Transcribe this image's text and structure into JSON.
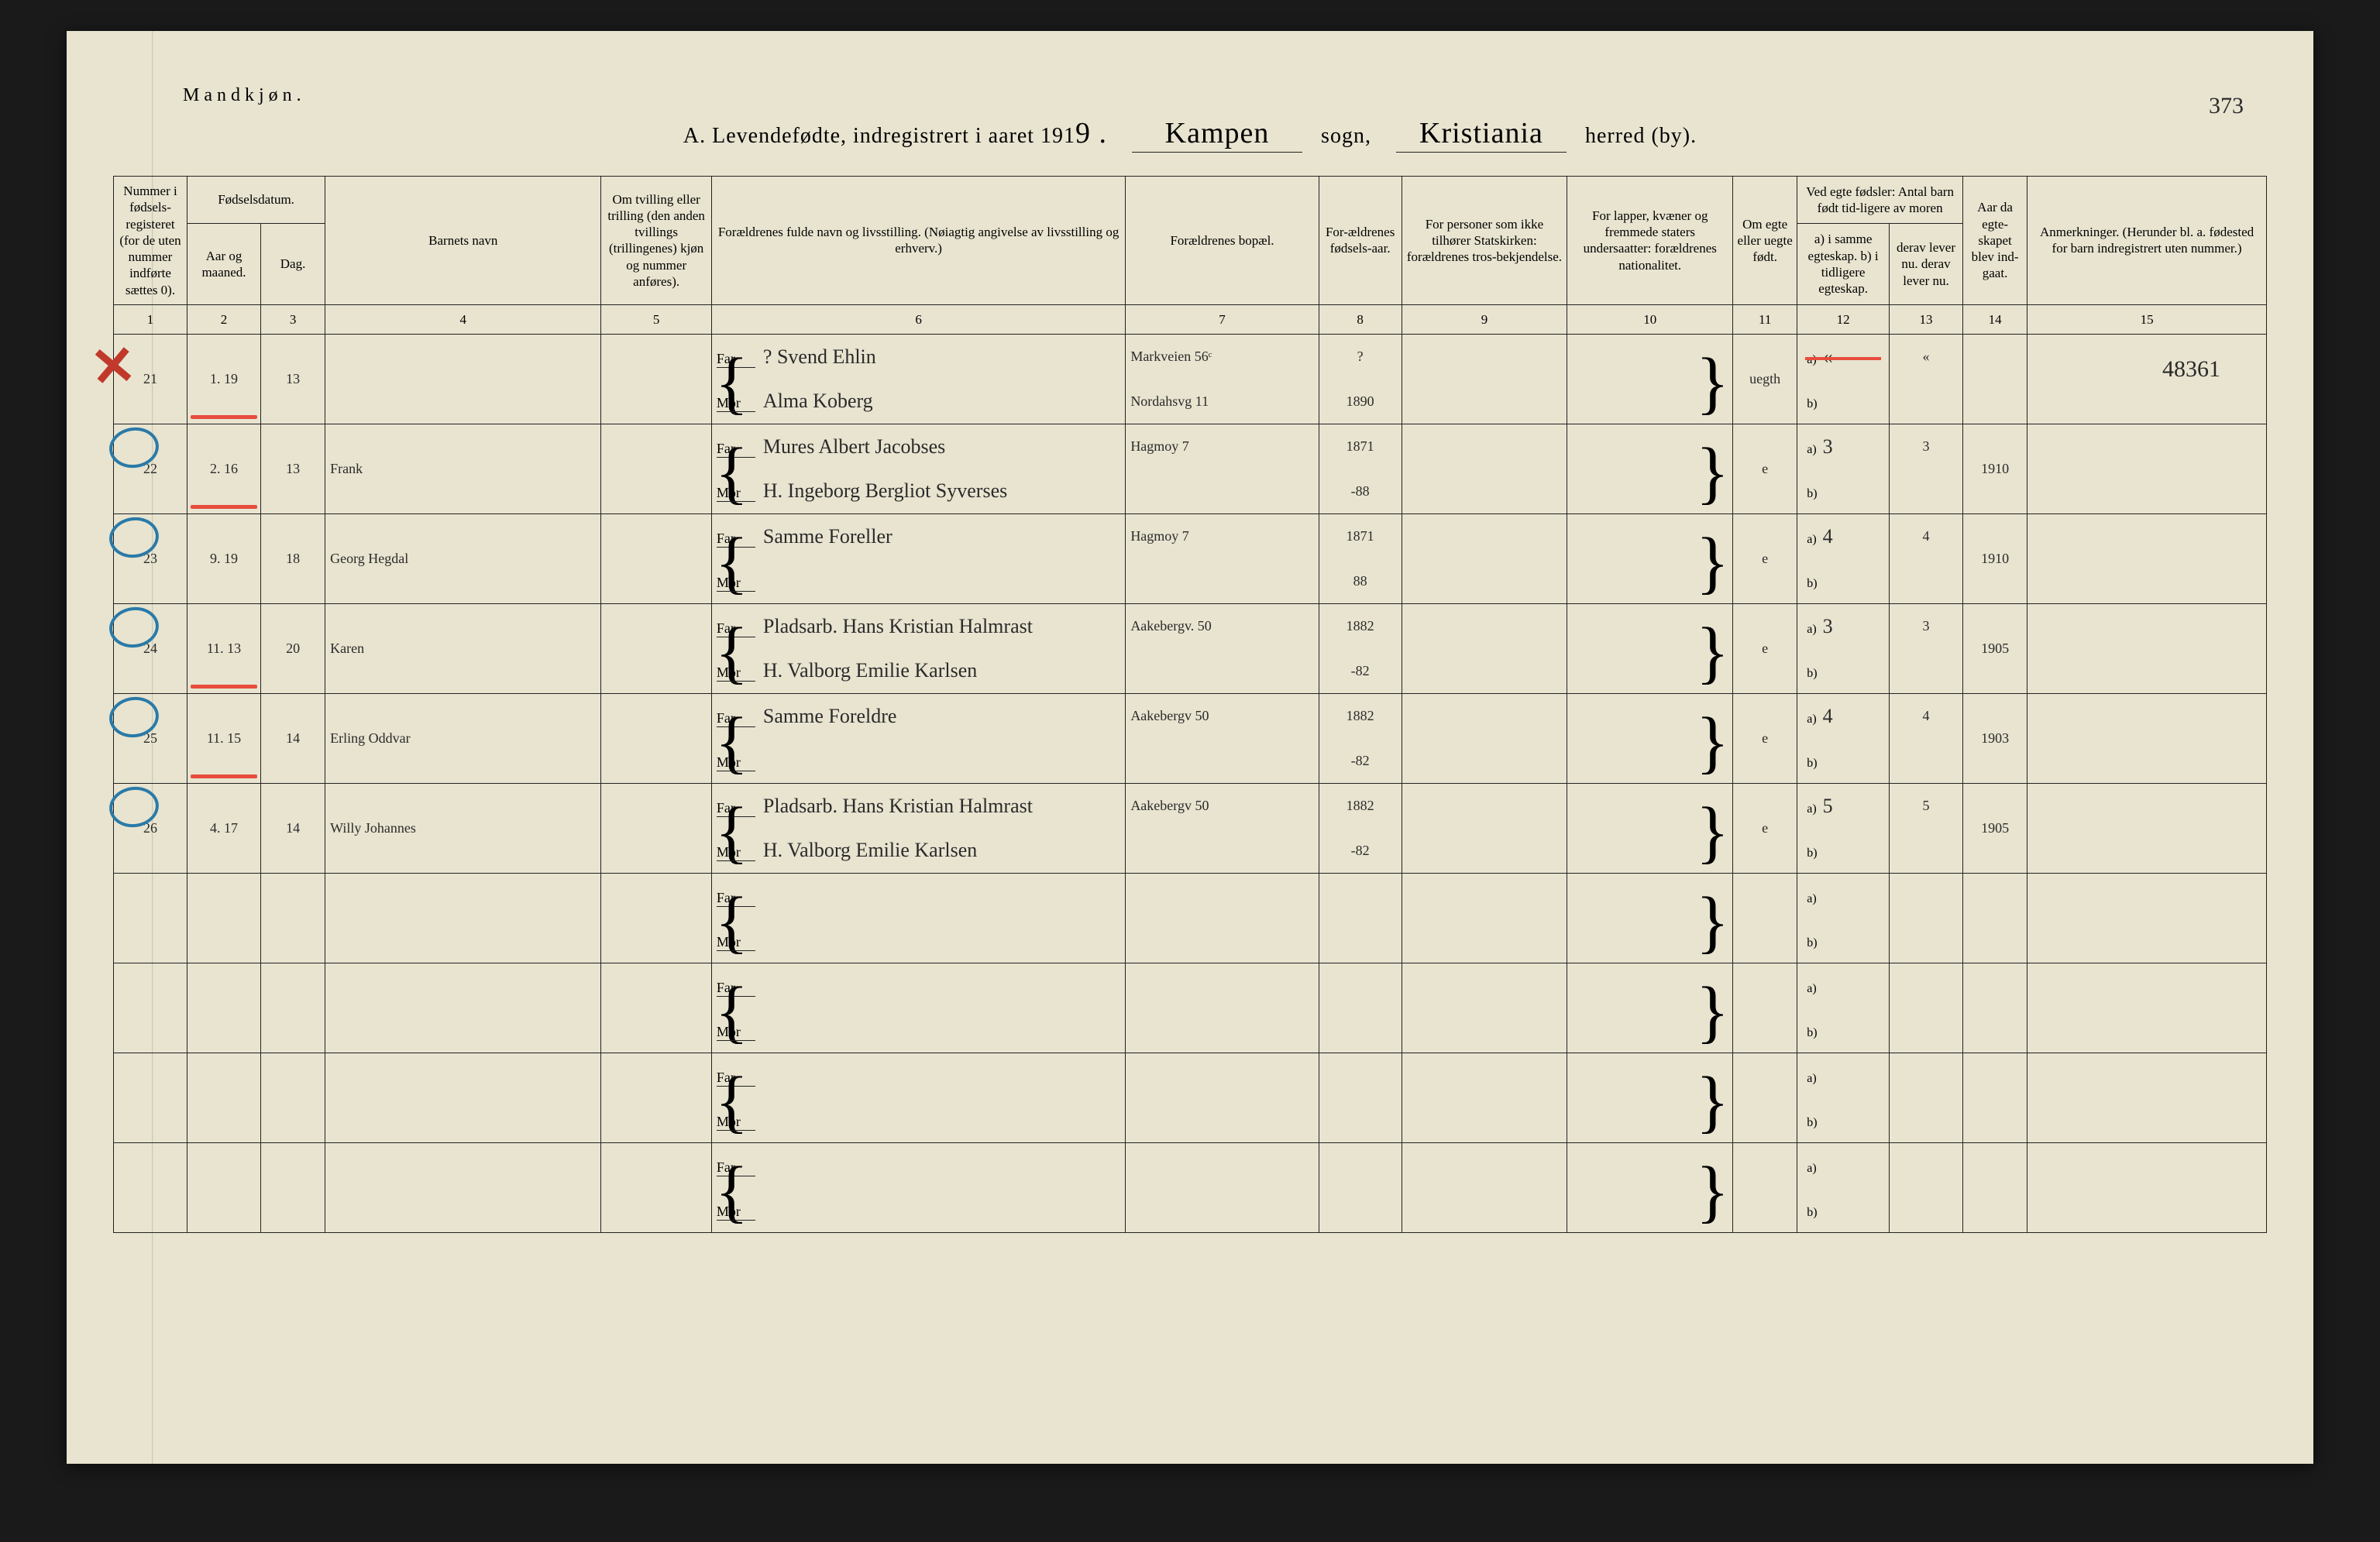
{
  "header": {
    "gender_label": "Mandkjøn.",
    "title_prefix": "A. Levendefødte, indregistrert i aaret 191",
    "year_suffix": "9 .",
    "sogn_value": "Kampen",
    "sogn_label": "sogn,",
    "herred_value": "Kristiania",
    "herred_label": "herred (by).",
    "page_number": "373",
    "ref_number": "48361"
  },
  "columns": {
    "c1": "Nummer i fødsels-registeret (for de uten nummer indførte sættes 0).",
    "c2_group": "Fødselsdatum.",
    "c2": "Aar og maaned.",
    "c3": "Dag.",
    "c4": "Barnets navn",
    "c5": "Om tvilling eller trilling (den anden tvillings (trillingenes) kjøn og nummer anføres).",
    "c6": "Forældrenes fulde navn og livsstilling. (Nøiagtig angivelse av livsstilling og erhverv.)",
    "c7": "Forældrenes bopæl.",
    "c8": "For-ældrenes fødsels-aar.",
    "c9": "For personer som ikke tilhører Statskirken: forældrenes tros-bekjendelse.",
    "c10": "For lapper, kvæner og fremmede staters undersaatter: forældrenes nationalitet.",
    "c11": "Om egte eller uegte født.",
    "c12_group": "Ved egte fødsler: Antal barn født tid-ligere av moren",
    "c12": "a) i samme egteskap. b) i tidligere egteskap.",
    "c13": "derav lever nu. derav lever nu.",
    "c14": "Aar da egte-skapet blev ind-gaat.",
    "c15": "Anmerkninger. (Herunder bl. a. fødested for barn indregistrert uten nummer.)",
    "nums": [
      "1",
      "2",
      "3",
      "4",
      "5",
      "6",
      "7",
      "8",
      "9",
      "10",
      "11",
      "12",
      "13",
      "14",
      "15"
    ]
  },
  "parent_labels": {
    "far": "Far",
    "mor": "Mor"
  },
  "ab_labels": {
    "a": "a)",
    "b": "b)"
  },
  "rows": [
    {
      "num": "21",
      "month": "1. 19",
      "day": "13",
      "name": "",
      "far_name": "?   Svend Ehlin",
      "far_addr": "Markveien 56ᶜ",
      "far_year": "?",
      "mor_name": "Alma Koberg",
      "mor_addr": "Nordahsvg 11",
      "mor_year": "1890",
      "legit": "uegth",
      "a_val": "«",
      "a_lev": "«",
      "b_val": "",
      "b_lev": "",
      "year_m": "",
      "mark": "x",
      "red_month": true,
      "strike12": true
    },
    {
      "num": "22",
      "month": "2. 16",
      "day": "13",
      "name": "Frank",
      "far_name": "Mures Albert Jacobses",
      "far_addr": "Hagmoy 7",
      "far_year": "1871",
      "mor_name": "H. Ingeborg Bergliot Syverses",
      "mor_addr": "",
      "mor_year": "-88",
      "legit": "e",
      "a_val": "3",
      "a_lev": "3",
      "b_val": "",
      "b_lev": "",
      "year_m": "1910",
      "mark": "circle",
      "red_month": true
    },
    {
      "num": "23",
      "month": "9. 19",
      "day": "18",
      "name": "Georg Hegdal",
      "far_name": "Samme Foreller",
      "far_addr": "Hagmoy 7",
      "far_year": "1871",
      "mor_name": "",
      "mor_addr": "",
      "mor_year": "88",
      "legit": "e",
      "a_val": "4",
      "a_lev": "4",
      "b_val": "",
      "b_lev": "",
      "year_m": "1910",
      "mark": "circle"
    },
    {
      "num": "24",
      "month": "11. 13",
      "day": "20",
      "name": "Karen",
      "far_name": "Pladsarb. Hans Kristian Halmrast",
      "far_addr": "Aakebergv. 50",
      "far_year": "1882",
      "mor_name": "H. Valborg Emilie Karlsen",
      "mor_addr": "",
      "mor_year": "-82",
      "legit": "e",
      "a_val": "3",
      "a_lev": "3",
      "b_val": "",
      "b_lev": "",
      "year_m": "1905",
      "mark": "circle",
      "red_month": true
    },
    {
      "num": "25",
      "month": "11. 15",
      "day": "14",
      "name": "Erling Oddvar",
      "far_name": "Samme Foreldre",
      "far_addr": "Aakebergv 50",
      "far_year": "1882",
      "mor_name": "",
      "mor_addr": "",
      "mor_year": "-82",
      "legit": "e",
      "a_val": "4",
      "a_lev": "4",
      "b_val": "",
      "b_lev": "",
      "year_m": "1903",
      "mark": "circle",
      "red_month": true
    },
    {
      "num": "26",
      "month": "4. 17",
      "day": "14",
      "name": "Willy Johannes",
      "far_name": "Pladsarb. Hans Kristian Halmrast",
      "far_addr": "Aakebergv 50",
      "far_year": "1882",
      "mor_name": "H. Valborg Emilie Karlsen",
      "mor_addr": "",
      "mor_year": "-82",
      "legit": "e",
      "a_val": "5",
      "a_lev": "5",
      "b_val": "",
      "b_lev": "",
      "year_m": "1905",
      "mark": "circle"
    }
  ],
  "empty_rows": 4,
  "colors": {
    "paper": "#e8e4d0",
    "ink": "#222222",
    "script": "#2a2a2a",
    "circle": "#2a7aa8",
    "red": "#e74c3c"
  }
}
